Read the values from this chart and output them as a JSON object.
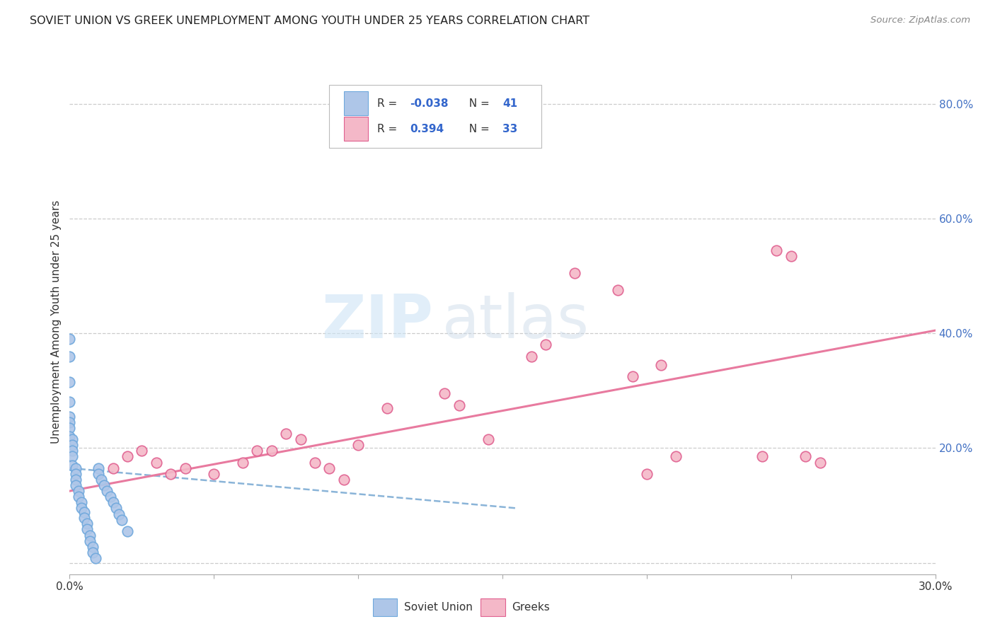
{
  "title": "SOVIET UNION VS GREEK UNEMPLOYMENT AMONG YOUTH UNDER 25 YEARS CORRELATION CHART",
  "source": "Source: ZipAtlas.com",
  "ylabel": "Unemployment Among Youth under 25 years",
  "xlim": [
    0.0,
    0.3
  ],
  "ylim": [
    -0.02,
    0.86
  ],
  "right_yticks": [
    0.0,
    0.2,
    0.4,
    0.6,
    0.8
  ],
  "right_yticklabels": [
    "",
    "20.0%",
    "40.0%",
    "60.0%",
    "80.0%"
  ],
  "xticks": [
    0.0,
    0.05,
    0.1,
    0.15,
    0.2,
    0.25,
    0.3
  ],
  "xticklabels": [
    "0.0%",
    "",
    "",
    "",
    "",
    "",
    "30.0%"
  ],
  "soviet_x": [
    0.0,
    0.0,
    0.0,
    0.0,
    0.0,
    0.0,
    0.0,
    0.0,
    0.001,
    0.001,
    0.001,
    0.001,
    0.001,
    0.002,
    0.002,
    0.002,
    0.002,
    0.003,
    0.003,
    0.004,
    0.004,
    0.005,
    0.005,
    0.006,
    0.006,
    0.007,
    0.007,
    0.008,
    0.008,
    0.009,
    0.01,
    0.01,
    0.011,
    0.012,
    0.013,
    0.014,
    0.015,
    0.016,
    0.017,
    0.018,
    0.02
  ],
  "soviet_y": [
    0.39,
    0.36,
    0.315,
    0.28,
    0.255,
    0.245,
    0.235,
    0.22,
    0.215,
    0.205,
    0.195,
    0.185,
    0.17,
    0.165,
    0.155,
    0.145,
    0.135,
    0.125,
    0.115,
    0.105,
    0.095,
    0.088,
    0.078,
    0.068,
    0.058,
    0.048,
    0.038,
    0.028,
    0.018,
    0.008,
    0.165,
    0.155,
    0.145,
    0.135,
    0.125,
    0.115,
    0.105,
    0.095,
    0.085,
    0.075,
    0.055
  ],
  "greek_x": [
    0.015,
    0.02,
    0.025,
    0.03,
    0.035,
    0.04,
    0.05,
    0.06,
    0.065,
    0.07,
    0.075,
    0.08,
    0.085,
    0.09,
    0.095,
    0.1,
    0.11,
    0.13,
    0.135,
    0.145,
    0.16,
    0.165,
    0.175,
    0.19,
    0.195,
    0.2,
    0.205,
    0.21,
    0.24,
    0.245,
    0.25,
    0.255,
    0.26
  ],
  "greek_y": [
    0.165,
    0.185,
    0.195,
    0.175,
    0.155,
    0.165,
    0.155,
    0.175,
    0.195,
    0.195,
    0.225,
    0.215,
    0.175,
    0.165,
    0.145,
    0.205,
    0.27,
    0.295,
    0.275,
    0.215,
    0.36,
    0.38,
    0.505,
    0.475,
    0.325,
    0.155,
    0.345,
    0.185,
    0.185,
    0.545,
    0.535,
    0.185,
    0.175
  ],
  "soviet_trendline_x": [
    0.0,
    0.155
  ],
  "soviet_trendline_y": [
    0.165,
    0.095
  ],
  "greek_trendline_x": [
    0.0,
    0.3
  ],
  "greek_trendline_y": [
    0.125,
    0.405
  ],
  "watermark_zip": "ZIP",
  "watermark_atlas": "atlas",
  "dot_size": 110,
  "soviet_dot_color": "#aec6e8",
  "soviet_dot_edge": "#6fa8dc",
  "greek_dot_color": "#f4b8c8",
  "greek_dot_edge": "#e06090",
  "soviet_line_color": "#8ab4d8",
  "greek_line_color": "#e87a9f",
  "grid_color": "#cccccc",
  "title_color": "#222222",
  "right_tick_color": "#4472c4",
  "source_color": "#888888",
  "legend_R1": "R = -0.038",
  "legend_N1": "N = 41",
  "legend_R2": "R =  0.394",
  "legend_N2": "N = 33",
  "bottom_legend_soviet": "Soviet Union",
  "bottom_legend_greeks": "Greeks"
}
